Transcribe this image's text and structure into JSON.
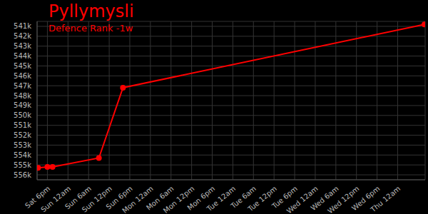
{
  "chart_data": {
    "type": "line",
    "title": "Pyllymysli",
    "subtitle": "Defence Rank -1w",
    "x": [
      -2.7,
      0,
      1.5,
      15,
      22,
      109.8
    ],
    "values": [
      555300,
      555200,
      555200,
      554300,
      547200,
      540800
    ],
    "color": "#ff0000",
    "marker": "circle",
    "grid": true,
    "xlim": [
      -3,
      110
    ],
    "xticks": [
      {
        "value": 0,
        "label": "Sat 6pm"
      },
      {
        "value": 6,
        "label": "Sun 12am"
      },
      {
        "value": 12,
        "label": "Sun 6am"
      },
      {
        "value": 18,
        "label": "Sun 12pm"
      },
      {
        "value": 24,
        "label": "Sun 6pm"
      },
      {
        "value": 30,
        "label": "Mon 12am"
      },
      {
        "value": 36,
        "label": "Mon 6am"
      },
      {
        "value": 42,
        "label": "Mon 12pm"
      },
      {
        "value": 48,
        "label": "Mon 6pm"
      },
      {
        "value": 54,
        "label": "Tue 12am"
      },
      {
        "value": 60,
        "label": "Tue 6am"
      },
      {
        "value": 66,
        "label": "Tue 12pm"
      },
      {
        "value": 72,
        "label": "Tue 6pm"
      },
      {
        "value": 78,
        "label": "Wed 12am"
      },
      {
        "value": 84,
        "label": "Wed 6am"
      },
      {
        "value": 90,
        "label": "Wed 12pm"
      },
      {
        "value": 96,
        "label": "Wed 6pm"
      },
      {
        "value": 102,
        "label": "Thu 12am"
      }
    ],
    "ylim": [
      540500,
      556500
    ],
    "yticks": [
      {
        "value": 541000,
        "label": "541k"
      },
      {
        "value": 542000,
        "label": "542k"
      },
      {
        "value": 543000,
        "label": "543k"
      },
      {
        "value": 544000,
        "label": "544k"
      },
      {
        "value": 545000,
        "label": "545k"
      },
      {
        "value": 546000,
        "label": "546k"
      },
      {
        "value": 547000,
        "label": "547k"
      },
      {
        "value": 548000,
        "label": "548k"
      },
      {
        "value": 549000,
        "label": "549k"
      },
      {
        "value": 550000,
        "label": "550k"
      },
      {
        "value": 551000,
        "label": "551k"
      },
      {
        "value": 552000,
        "label": "552k"
      },
      {
        "value": 553000,
        "label": "553k"
      },
      {
        "value": 554000,
        "label": "554k"
      },
      {
        "value": 555000,
        "label": "555k"
      },
      {
        "value": 556000,
        "label": "556k"
      }
    ]
  }
}
